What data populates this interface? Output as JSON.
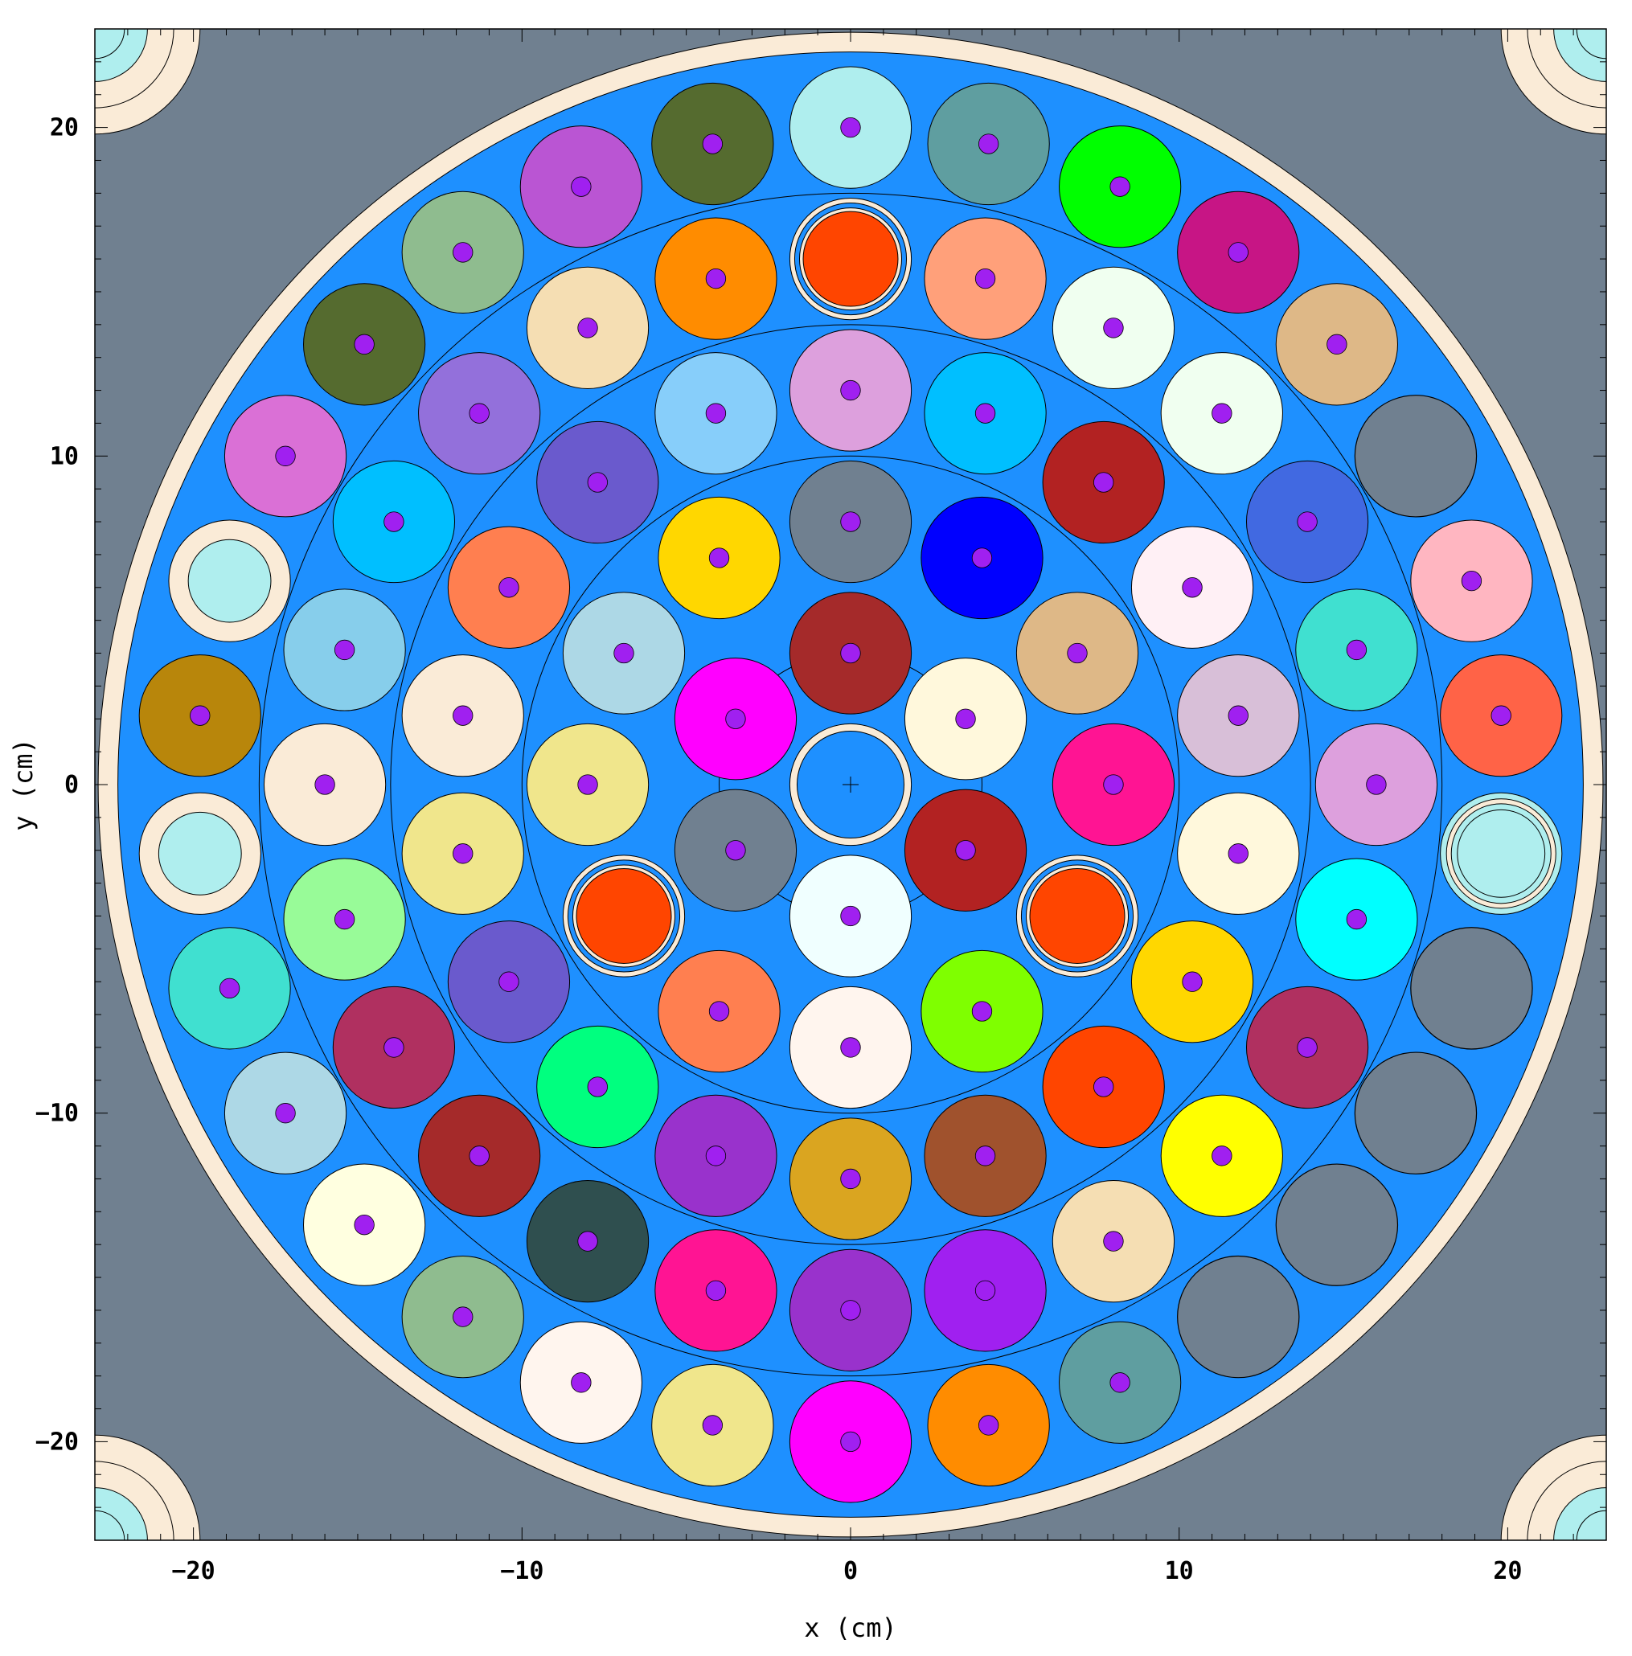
{
  "axes": {
    "x_label": "x (cm)",
    "y_label": "y (cm)",
    "x_range": [
      -23,
      23
    ],
    "y_range": [
      -23,
      23
    ],
    "x_ticks": [
      {
        "value": -20,
        "label": "−20"
      },
      {
        "value": -10,
        "label": "−10"
      },
      {
        "value": 0,
        "label": "0"
      },
      {
        "value": 10,
        "label": "10"
      },
      {
        "value": 20,
        "label": "20"
      }
    ],
    "y_ticks": [
      {
        "value": 20,
        "label": "20"
      },
      {
        "value": 10,
        "label": "10"
      },
      {
        "value": 0,
        "label": "0"
      },
      {
        "value": -10,
        "label": "−10"
      },
      {
        "value": -20,
        "label": "−20"
      }
    ]
  },
  "colors": {
    "background": "#708090",
    "vessel": "#faebd7",
    "coolant": "#1e90ff",
    "pin": "#a020f0",
    "corner": "#afeeee",
    "ring_lines": "#000000"
  },
  "core": {
    "vessel_outer_radius": 22.9,
    "vessel_inner_radius": 22.3,
    "zone_ring_radii": [
      4.0,
      10.0,
      14.0,
      18.0
    ],
    "assembly_radius": 1.85,
    "pin_radius": 0.3,
    "corner_arcs": [
      {
        "corner": "top-left",
        "center": [
          -23,
          23
        ],
        "radii": [
          3.2,
          2.4,
          1.6,
          0.9
        ]
      },
      {
        "corner": "top-right",
        "center": [
          23,
          23
        ],
        "radii": [
          3.2,
          2.4,
          1.6,
          0.9
        ]
      },
      {
        "corner": "bottom-left",
        "center": [
          -23,
          -23
        ],
        "radii": [
          3.2,
          2.4,
          1.6,
          0.9
        ]
      },
      {
        "corner": "bottom-right",
        "center": [
          23,
          -23
        ],
        "radii": [
          3.2,
          2.4,
          1.6,
          0.9
        ]
      }
    ],
    "assemblies": [
      {
        "x": 0,
        "y": 0,
        "kind": "central",
        "color": "#1e90ff"
      },
      {
        "x": 0,
        "y": 4,
        "color": "#a52a2a"
      },
      {
        "x": 3.5,
        "y": 2,
        "color": "#fff8dc"
      },
      {
        "x": 3.5,
        "y": -2,
        "color": "#b22222"
      },
      {
        "x": 0,
        "y": -4,
        "color": "#f0ffff"
      },
      {
        "x": -3.5,
        "y": -2,
        "color": "#708090"
      },
      {
        "x": -3.5,
        "y": 2,
        "color": "#ff00ff"
      },
      {
        "x": 0,
        "y": 8,
        "color": "#708090"
      },
      {
        "x": 4,
        "y": 6.9,
        "color": "#0000ff"
      },
      {
        "x": 6.9,
        "y": 4,
        "color": "#deb887"
      },
      {
        "x": 8,
        "y": 0,
        "color": "#ff1493"
      },
      {
        "x": 6.9,
        "y": -4,
        "kind": "control",
        "color": "#ff4500"
      },
      {
        "x": 4,
        "y": -6.9,
        "color": "#7fff00"
      },
      {
        "x": 0,
        "y": -8,
        "color": "#fff5ee"
      },
      {
        "x": -4,
        "y": -6.9,
        "color": "#ff7f50"
      },
      {
        "x": -6.9,
        "y": -4,
        "kind": "control",
        "color": "#ff4500"
      },
      {
        "x": -8,
        "y": 0,
        "color": "#f0e68c"
      },
      {
        "x": -6.9,
        "y": 4,
        "color": "#add8e6"
      },
      {
        "x": -4,
        "y": 6.9,
        "color": "#ffd700"
      },
      {
        "x": 0,
        "y": 12,
        "color": "#dda0dd"
      },
      {
        "x": 4.1,
        "y": 11.3,
        "color": "#00bfff"
      },
      {
        "x": 7.7,
        "y": 9.2,
        "color": "#b22222"
      },
      {
        "x": 10.4,
        "y": 6,
        "color": "#fff0f5"
      },
      {
        "x": 11.8,
        "y": 2.1,
        "color": "#d8bfd8"
      },
      {
        "x": 11.8,
        "y": -2.1,
        "color": "#fff8dc"
      },
      {
        "x": 10.4,
        "y": -6,
        "color": "#ffd700"
      },
      {
        "x": 7.7,
        "y": -9.2,
        "color": "#ff4500"
      },
      {
        "x": 4.1,
        "y": -11.3,
        "color": "#a0522d"
      },
      {
        "x": 0,
        "y": -12,
        "color": "#daa520"
      },
      {
        "x": -4.1,
        "y": -11.3,
        "color": "#9932cc"
      },
      {
        "x": -7.7,
        "y": -9.2,
        "color": "#00ff7f"
      },
      {
        "x": -10.4,
        "y": -6,
        "color": "#6a5acd"
      },
      {
        "x": -11.8,
        "y": -2.1,
        "color": "#f0e68c"
      },
      {
        "x": -11.8,
        "y": 2.1,
        "color": "#faebd7"
      },
      {
        "x": -10.4,
        "y": 6,
        "color": "#ff7f50"
      },
      {
        "x": -7.7,
        "y": 9.2,
        "color": "#6a5acd"
      },
      {
        "x": -4.1,
        "y": 11.3,
        "color": "#87cefa"
      },
      {
        "x": 0,
        "y": 16,
        "kind": "control",
        "color": "#ff4500"
      },
      {
        "x": 4.1,
        "y": 15.4,
        "color": "#ffa07a"
      },
      {
        "x": 8,
        "y": 13.9,
        "color": "#f0fff0"
      },
      {
        "x": 11.3,
        "y": 11.3,
        "color": "#f0fff0"
      },
      {
        "x": 13.9,
        "y": 8,
        "color": "#4169e1"
      },
      {
        "x": 15.4,
        "y": 4.1,
        "color": "#40e0d0"
      },
      {
        "x": 16,
        "y": 0,
        "color": "#dda0dd"
      },
      {
        "x": 15.4,
        "y": -4.1,
        "color": "#00ffff"
      },
      {
        "x": 13.9,
        "y": -8,
        "color": "#b03060"
      },
      {
        "x": 11.3,
        "y": -11.3,
        "color": "#ffff00"
      },
      {
        "x": 8,
        "y": -13.9,
        "color": "#f5deb3"
      },
      {
        "x": 4.1,
        "y": -15.4,
        "color": "#a020f0"
      },
      {
        "x": 0,
        "y": -16,
        "color": "#9932cc"
      },
      {
        "x": -4.1,
        "y": -15.4,
        "color": "#ff1493"
      },
      {
        "x": -8,
        "y": -13.9,
        "color": "#2f4f4f"
      },
      {
        "x": -11.3,
        "y": -11.3,
        "color": "#a52a2a"
      },
      {
        "x": -13.9,
        "y": -8,
        "color": "#b03060"
      },
      {
        "x": -15.4,
        "y": -4.1,
        "color": "#98fb98"
      },
      {
        "x": -16,
        "y": 0,
        "color": "#faebd7"
      },
      {
        "x": -15.4,
        "y": 4.1,
        "color": "#87ceeb"
      },
      {
        "x": -13.9,
        "y": 8,
        "color": "#00bfff"
      },
      {
        "x": -11.3,
        "y": 11.3,
        "color": "#9370db"
      },
      {
        "x": -8,
        "y": 13.9,
        "color": "#f5deb3"
      },
      {
        "x": -4.1,
        "y": 15.4,
        "color": "#ff8c00"
      },
      {
        "x": 0,
        "y": 20,
        "color": "#afeeee"
      },
      {
        "x": 4.2,
        "y": 19.5,
        "color": "#5f9ea0"
      },
      {
        "x": 8.2,
        "y": 18.2,
        "color": "#00ff00"
      },
      {
        "x": 11.8,
        "y": 16.2,
        "color": "#c71585"
      },
      {
        "x": 14.8,
        "y": 13.4,
        "color": "#deb887"
      },
      {
        "x": 17.2,
        "y": 10,
        "kind": "empty",
        "color": "#708090"
      },
      {
        "x": 18.9,
        "y": 6.2,
        "color": "#ffb6c1"
      },
      {
        "x": 19.8,
        "y": 2.1,
        "color": "#ff6347"
      },
      {
        "x": 19.8,
        "y": -2.1,
        "kind": "source",
        "color": "#afeeee"
      },
      {
        "x": 18.9,
        "y": -6.2,
        "kind": "empty",
        "color": "#708090"
      },
      {
        "x": 17.2,
        "y": -10,
        "kind": "empty",
        "color": "#708090"
      },
      {
        "x": 14.8,
        "y": -13.4,
        "kind": "empty",
        "color": "#708090"
      },
      {
        "x": 11.8,
        "y": -16.2,
        "kind": "empty",
        "color": "#708090"
      },
      {
        "x": 8.2,
        "y": -18.2,
        "color": "#5f9ea0"
      },
      {
        "x": 4.2,
        "y": -19.5,
        "color": "#ff8c00"
      },
      {
        "x": 0,
        "y": -20,
        "color": "#ff00ff"
      },
      {
        "x": -4.2,
        "y": -19.5,
        "color": "#f0e68c"
      },
      {
        "x": -8.2,
        "y": -18.2,
        "color": "#fff5ee"
      },
      {
        "x": -11.8,
        "y": -16.2,
        "color": "#8fbc8f"
      },
      {
        "x": -14.8,
        "y": -13.4,
        "color": "#ffffe0"
      },
      {
        "x": -17.2,
        "y": -10,
        "color": "#add8e6"
      },
      {
        "x": -18.9,
        "y": -6.2,
        "color": "#40e0d0"
      },
      {
        "x": -19.8,
        "y": -2.1,
        "kind": "hollow",
        "color": "#afeeee"
      },
      {
        "x": -19.8,
        "y": 2.1,
        "color": "#b8860b"
      },
      {
        "x": -18.9,
        "y": 6.2,
        "kind": "hollow",
        "color": "#afeeee"
      },
      {
        "x": -17.2,
        "y": 10,
        "color": "#da70d6"
      },
      {
        "x": -14.8,
        "y": 13.4,
        "color": "#556b2f"
      },
      {
        "x": -11.8,
        "y": 16.2,
        "color": "#8fbc8f"
      },
      {
        "x": -8.2,
        "y": 18.2,
        "color": "#ba55d3"
      },
      {
        "x": -4.2,
        "y": 19.5,
        "color": "#556b2f"
      }
    ]
  }
}
